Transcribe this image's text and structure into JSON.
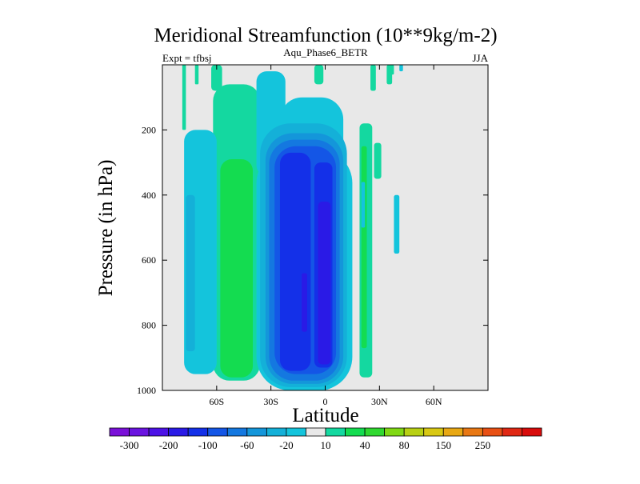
{
  "chart_data": {
    "type": "heatmap",
    "title": "Meridional Streamfunction (10**9kg/m-2)",
    "subtitle_left": "Expt = tfbsj",
    "subtitle_center": "Aqu_Phase6_BETR",
    "subtitle_right": "JJA",
    "xlabel": "Latitude",
    "ylabel": "Pressure (in hPa)",
    "xlim": [
      -90,
      90
    ],
    "ylim": [
      1000,
      0
    ],
    "x_ticks": [
      {
        "value": -60,
        "label": "60S"
      },
      {
        "value": -30,
        "label": "30S"
      },
      {
        "value": 0,
        "label": "0"
      },
      {
        "value": 30,
        "label": "30N"
      },
      {
        "value": 60,
        "label": "60N"
      }
    ],
    "y_ticks": [
      {
        "value": 200,
        "label": "200"
      },
      {
        "value": 400,
        "label": "400"
      },
      {
        "value": 600,
        "label": "600"
      },
      {
        "value": 800,
        "label": "800"
      },
      {
        "value": 1000,
        "label": "1000"
      }
    ],
    "colorbar": {
      "colors": [
        "#7a10d8",
        "#6a14e0",
        "#4c12e6",
        "#2a1ae6",
        "#1430e8",
        "#1456e6",
        "#1478e0",
        "#1496da",
        "#14b0d8",
        "#14c4dc",
        "#e8e8e8",
        "#14d8a0",
        "#14dc50",
        "#30d830",
        "#80d814",
        "#b8d014",
        "#d8c814",
        "#e8a814",
        "#e87814",
        "#e85014",
        "#e02814",
        "#d80c0c"
      ],
      "labels": [
        "-300",
        "-200",
        "-100",
        "-60",
        "-20",
        "10",
        "40",
        "80",
        "150",
        "250"
      ],
      "label_boundaries": [
        1,
        3,
        5,
        7,
        9,
        11,
        13,
        15,
        17,
        19
      ]
    },
    "background_color": "#e8e8e8",
    "regions": [
      {
        "color": "#14d8a0",
        "lat": [
          -79,
          -77
        ],
        "p": [
          0,
          200
        ]
      },
      {
        "color": "#14d8a0",
        "lat": [
          -72,
          -70
        ],
        "p": [
          0,
          60
        ]
      },
      {
        "color": "#14d8a0",
        "lat": [
          -63,
          -57
        ],
        "p": [
          0,
          80
        ]
      },
      {
        "color": "#14d8a0",
        "lat": [
          -62,
          -36
        ],
        "p": [
          60,
          970
        ]
      },
      {
        "color": "#14c4dc",
        "lat": [
          -78,
          -60
        ],
        "p": [
          200,
          950
        ]
      },
      {
        "color": "#14b0d8",
        "lat": [
          -77,
          -72
        ],
        "p": [
          400,
          880
        ]
      },
      {
        "color": "#14dc50",
        "lat": [
          -58,
          -40
        ],
        "p": [
          290,
          960
        ]
      },
      {
        "color": "#14c4dc",
        "lat": [
          -38,
          -22
        ],
        "p": [
          20,
          340
        ]
      },
      {
        "color": "#14c4dc",
        "lat": [
          -25,
          10
        ],
        "p": [
          100,
          1000
        ]
      },
      {
        "color": "#14c4dc",
        "lat": [
          -38,
          15
        ],
        "p": [
          260,
          1000
        ]
      },
      {
        "color": "#14b0d8",
        "lat": [
          -36,
          12
        ],
        "p": [
          180,
          990
        ]
      },
      {
        "color": "#1496da",
        "lat": [
          -33,
          10
        ],
        "p": [
          210,
          980
        ]
      },
      {
        "color": "#1478e0",
        "lat": [
          -31,
          8
        ],
        "p": [
          230,
          970
        ]
      },
      {
        "color": "#1456e6",
        "lat": [
          -28,
          6
        ],
        "p": [
          250,
          950
        ]
      },
      {
        "color": "#1430e8",
        "lat": [
          -25,
          -8
        ],
        "p": [
          270,
          940
        ]
      },
      {
        "color": "#1430e8",
        "lat": [
          -6,
          4
        ],
        "p": [
          300,
          930
        ]
      },
      {
        "color": "#2a1ae6",
        "lat": [
          -4,
          3
        ],
        "p": [
          420,
          920
        ]
      },
      {
        "color": "#2a1ae6",
        "lat": [
          -13,
          -10
        ],
        "p": [
          640,
          820
        ]
      },
      {
        "color": "#14d8a0",
        "lat": [
          -6,
          -1
        ],
        "p": [
          0,
          60
        ]
      },
      {
        "color": "#14d8a0",
        "lat": [
          19,
          26
        ],
        "p": [
          180,
          960
        ]
      },
      {
        "color": "#14dc50",
        "lat": [
          20,
          23
        ],
        "p": [
          250,
          870
        ]
      },
      {
        "color": "#14c4dc",
        "lat": [
          20,
          22
        ],
        "p": [
          360,
          500
        ]
      },
      {
        "color": "#14d8a0",
        "lat": [
          25,
          28
        ],
        "p": [
          0,
          80
        ]
      },
      {
        "color": "#14d8a0",
        "lat": [
          27,
          31
        ],
        "p": [
          240,
          350
        ]
      },
      {
        "color": "#14d8a0",
        "lat": [
          34,
          37
        ],
        "p": [
          0,
          60
        ]
      },
      {
        "color": "#14d8a0",
        "lat": [
          36,
          38
        ],
        "p": [
          0,
          30
        ]
      },
      {
        "color": "#14c4dc",
        "lat": [
          38,
          41
        ],
        "p": [
          400,
          580
        ]
      },
      {
        "color": "#14c4dc",
        "lat": [
          41,
          43
        ],
        "p": [
          0,
          20
        ]
      }
    ]
  }
}
